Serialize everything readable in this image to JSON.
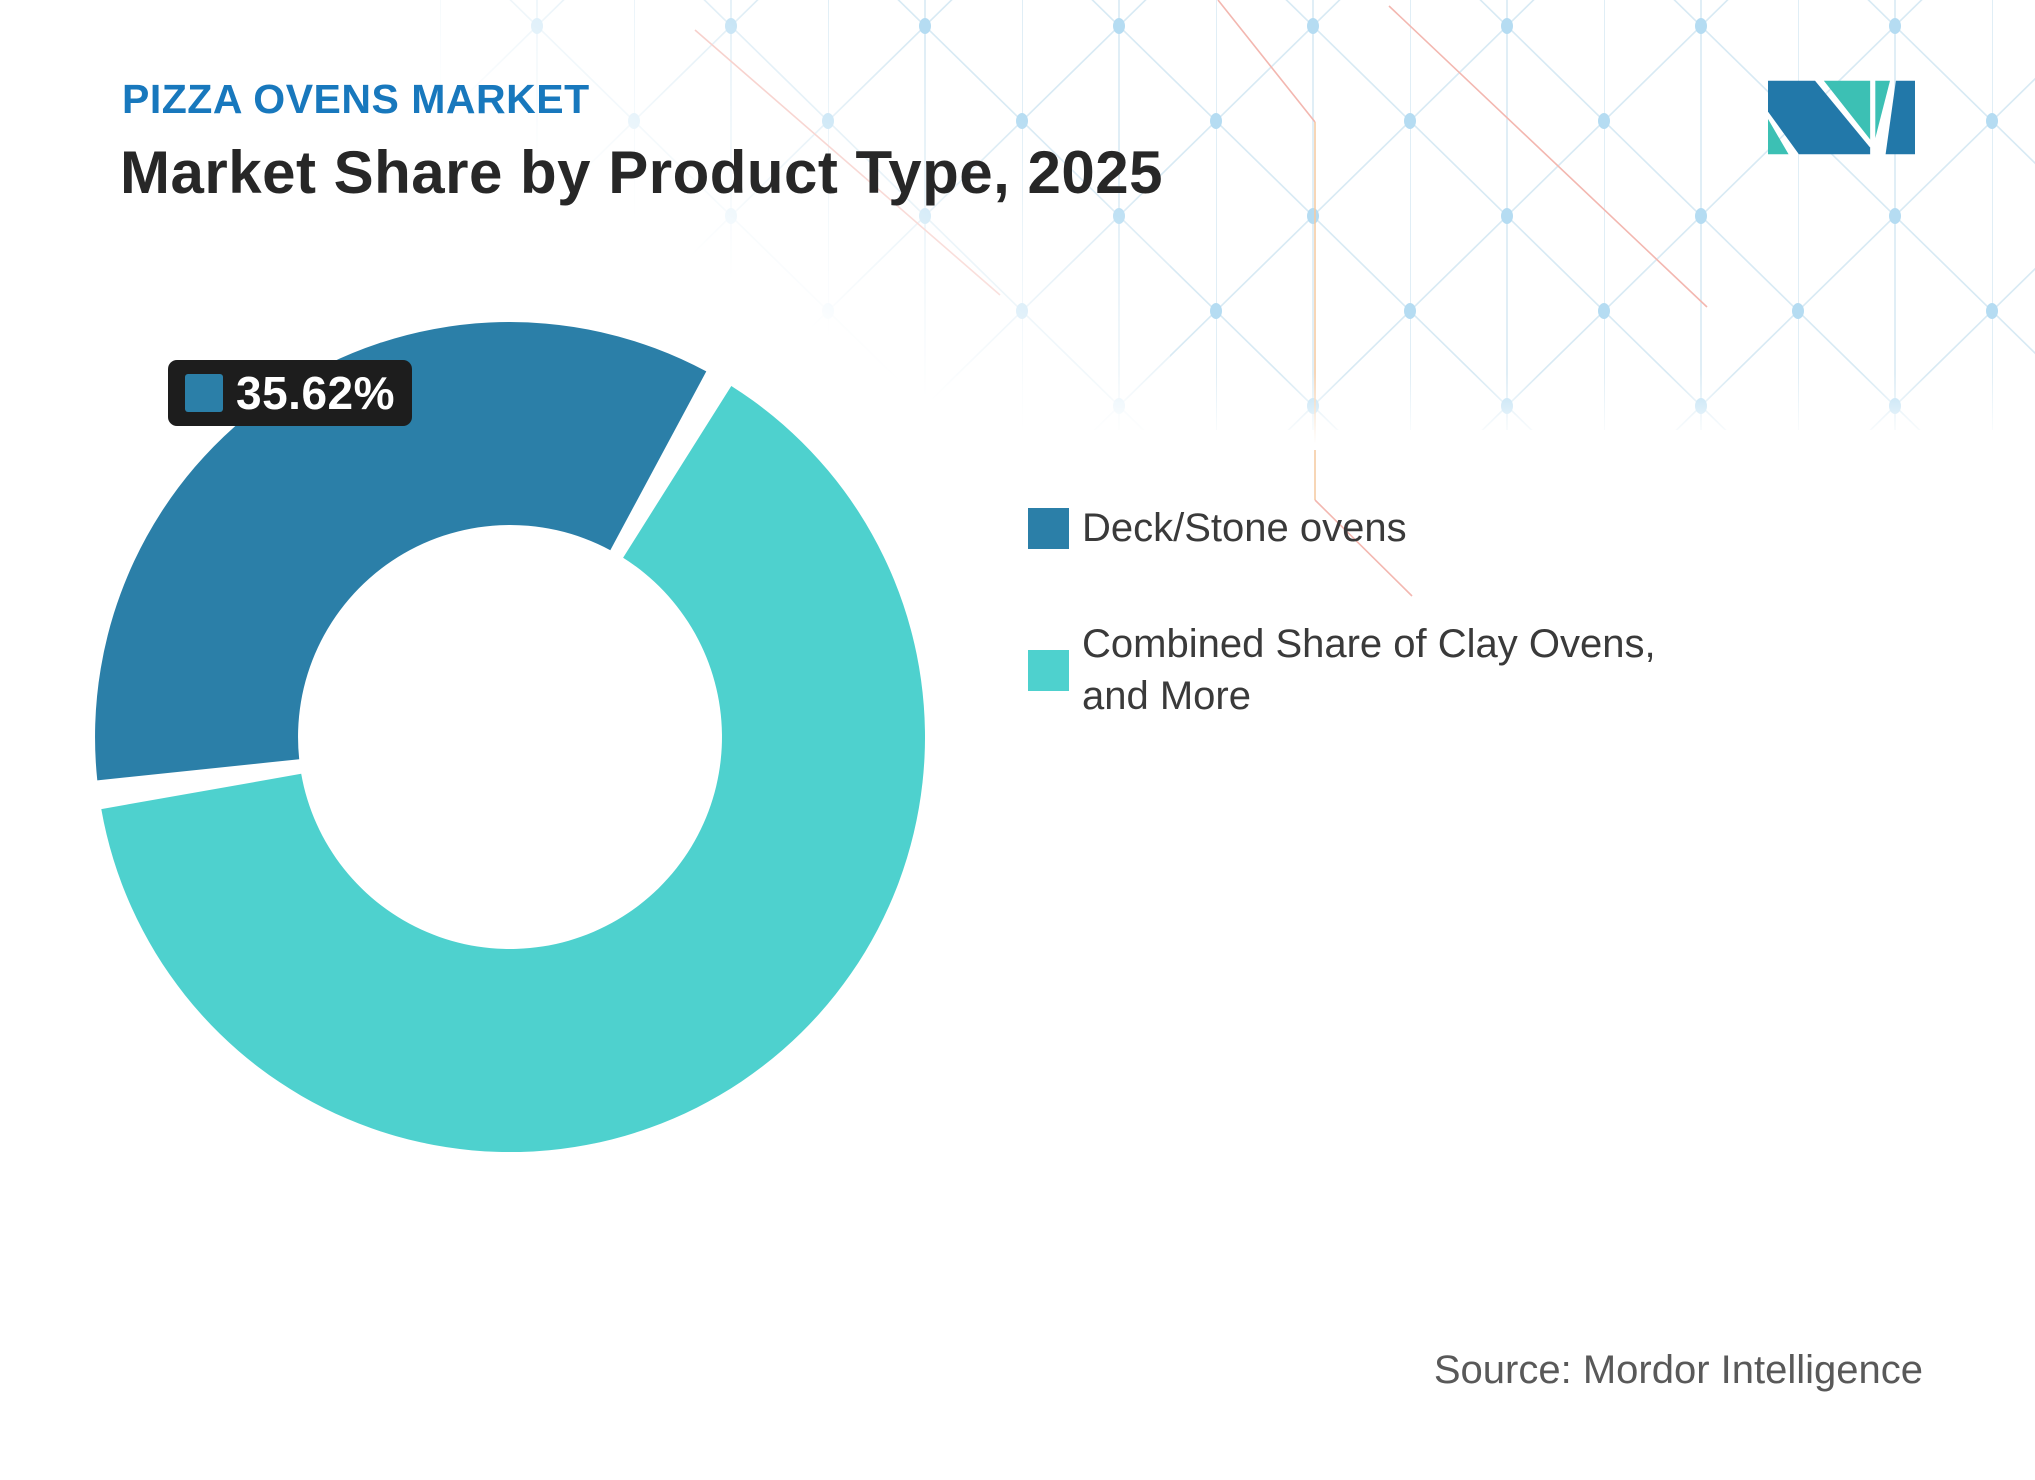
{
  "header": {
    "eyebrow": "PIZZA OVENS MARKET",
    "title": "Market Share by Product Type, 2025"
  },
  "chart_data": {
    "type": "pie",
    "donut": true,
    "title": "Market Share by Product Type, 2025",
    "inner_radius_ratio": 0.51,
    "legend_position": "right",
    "series": [
      {
        "name": "Deck/Stone ovens",
        "value": 35.62,
        "color": "#2b7fa8",
        "label": "35.62%"
      },
      {
        "name": "Combined Share of Clay Ovens, and More",
        "value": 64.38,
        "color": "#4ed1ce",
        "label": ""
      }
    ]
  },
  "legend": {
    "items": [
      {
        "label": "Deck/Stone ovens",
        "color": "#2b7fa8"
      },
      {
        "label": "Combined Share of Clay Ovens, and More",
        "color": "#4ed1ce"
      }
    ]
  },
  "footer": {
    "source": "Source: Mordor Intelligence"
  },
  "colors": {
    "accent_blue": "#1878bd",
    "slice_blue": "#2b7fa8",
    "slice_teal": "#4ed1ce",
    "label_box_bg": "#1d1d1d",
    "logo_blue": "#2278a9",
    "logo_teal": "#3cc0b4",
    "pattern_line": "#d8eaf4",
    "pattern_dot": "#b5dcf2",
    "pattern_red": "#f3b7b0",
    "pattern_orange": "#f5cba4"
  }
}
